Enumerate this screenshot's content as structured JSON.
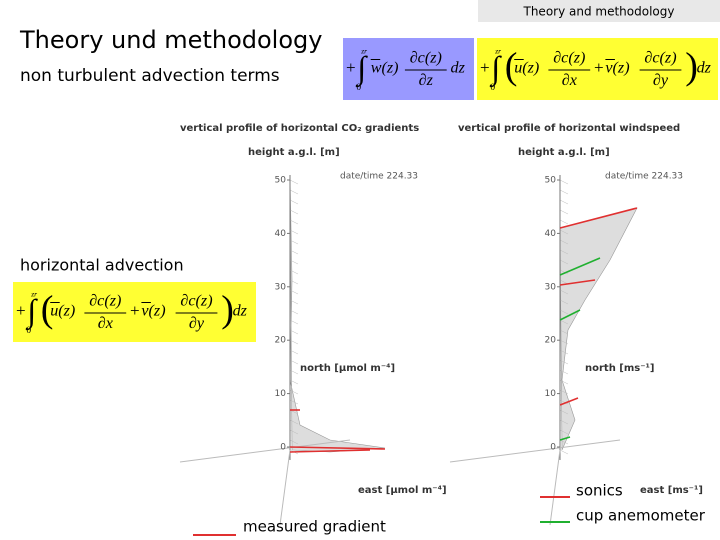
{
  "header": {
    "tab": "Theory and methodology",
    "title": "Theory und methodology",
    "subtitle": "non turbulent advection terms"
  },
  "formulas": {
    "vertical": {
      "sign": "+",
      "upper": "zr",
      "lower": "0",
      "terms": [
        {
          "factor": "w(z)",
          "num": "∂c(z)",
          "den": "∂z"
        }
      ],
      "tail": "dz"
    },
    "horizontal_top": {
      "sign": "+",
      "upper": "zr",
      "lower": "0",
      "terms": [
        {
          "factor": "u(z)",
          "num": "∂c(z)",
          "den": "∂x"
        },
        {
          "sign": "+",
          "factor": "v(z)",
          "num": "∂c(z)",
          "den": "∂y"
        }
      ],
      "tail": "dz"
    },
    "horizontal_left": {
      "sign": "+",
      "upper": "zr",
      "lower": "0",
      "terms": [
        {
          "factor": "u(z)",
          "num": "∂c(z)",
          "den": "∂x"
        },
        {
          "sign": "+",
          "factor": "v(z)",
          "num": "∂c(z)",
          "den": "∂y"
        }
      ],
      "tail": "dz"
    }
  },
  "section_label": "horizontal advection",
  "plots": [
    {
      "title": "vertical profile of horizontal CO₂ gradients",
      "ylabel": "height a.g.l. [m]",
      "datetime": "date/time 224.33",
      "north": "north [μmol m⁻⁴]",
      "east": "east [μmol m⁻⁴]",
      "yticks": [
        50,
        40,
        30,
        20,
        10,
        0
      ]
    },
    {
      "title": "vertical profile of horizontal windspeed",
      "ylabel": "height a.g.l. [m]",
      "datetime": "date/time 224.33",
      "north": "north [ms⁻¹]",
      "east": "east [ms⁻¹]",
      "yticks": [
        50,
        40,
        30,
        20,
        10,
        0
      ]
    }
  ],
  "legend": {
    "sonics": "sonics",
    "cup": "cup anemometer",
    "measured": "measured gradient"
  }
}
